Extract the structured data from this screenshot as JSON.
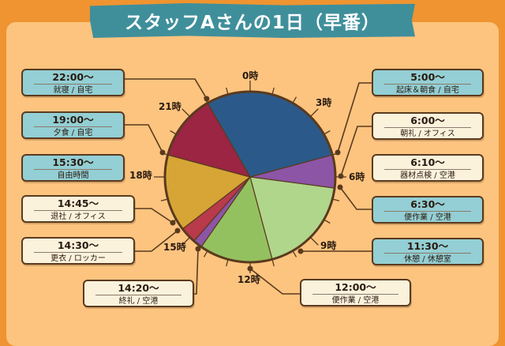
{
  "title": "スタッフAさんの1日（早番）",
  "chart_data": {
    "type": "pie",
    "clock": "24h",
    "hour_labels": [
      "0時",
      "3時",
      "6時",
      "9時",
      "12時",
      "15時",
      "18時",
      "21時"
    ],
    "segments": [
      {
        "start": 22,
        "end": 29,
        "color": "#2b5a8a"
      },
      {
        "start": 5,
        "end": 6.5,
        "color": "#8c55a6"
      },
      {
        "start": 6.5,
        "end": 11,
        "color": "#b0d68b"
      },
      {
        "start": 11,
        "end": 14.333,
        "color": "#94c15f"
      },
      {
        "start": 14.333,
        "end": 14.75,
        "color": "#8c55a6"
      },
      {
        "start": 14.75,
        "end": 15.5,
        "color": "#b83a4b"
      },
      {
        "start": 15.5,
        "end": 19,
        "color": "#d6a535"
      },
      {
        "start": 19,
        "end": 22,
        "color": "#9b2542"
      }
    ]
  },
  "schedule": [
    {
      "time": "22:00〜",
      "desc": "就寝 / 自宅"
    },
    {
      "time": "19:00〜",
      "desc": "夕食 / 自宅"
    },
    {
      "time": "15:30〜",
      "desc": "自由時間"
    },
    {
      "time": "14:45〜",
      "desc": "退社 / オフィス"
    },
    {
      "time": "14:30〜",
      "desc": "更衣 / ロッカー"
    },
    {
      "time": "14:20〜",
      "desc": "終礼 / 空港"
    },
    {
      "time": "5:00〜",
      "desc": "起床＆朝食 / 自宅"
    },
    {
      "time": "6:00〜",
      "desc": "朝礼 / オフィス"
    },
    {
      "time": "6:10〜",
      "desc": "器材点検 / 空港"
    },
    {
      "time": "6:30〜",
      "desc": "便作業 / 空港"
    },
    {
      "time": "11:30〜",
      "desc": "休憩 / 休憩室"
    },
    {
      "time": "12:00〜",
      "desc": "便作業 / 空港"
    }
  ]
}
